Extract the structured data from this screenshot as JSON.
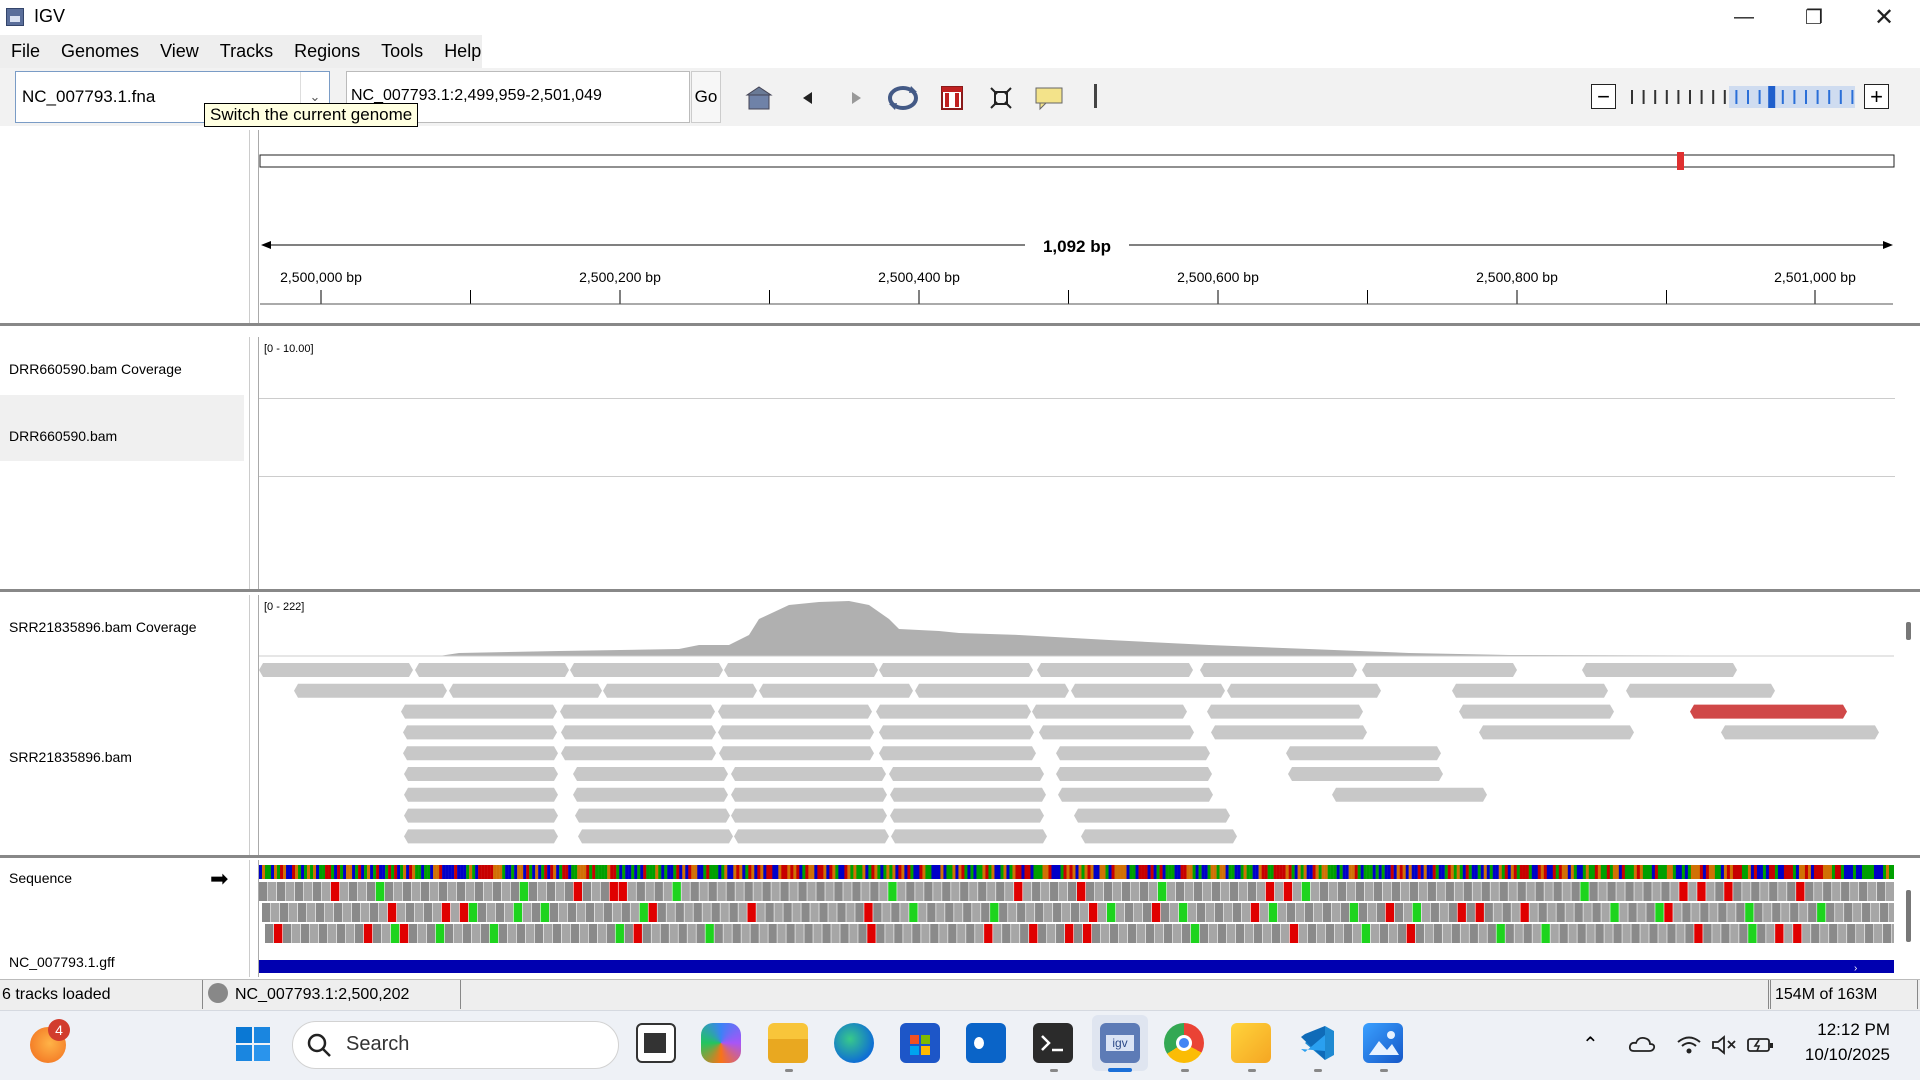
{
  "window": {
    "title": "IGV",
    "minimize_icon": "minimize-icon",
    "restore_icon": "restore-icon",
    "close_icon": "close-icon"
  },
  "menu": [
    "File",
    "Genomes",
    "View",
    "Tracks",
    "Regions",
    "Tools",
    "Help"
  ],
  "toolbar": {
    "genome_value": "NC_007793.1.fna",
    "genome_tooltip": "Switch the current genome",
    "locus_value": "NC_007793.1:2,499,959-2,501,049",
    "go_label": "Go",
    "icons": [
      "home-icon",
      "back-icon",
      "forward-icon",
      "refresh-icon",
      "roi-icon",
      "fit-icon",
      "popup-info-icon"
    ],
    "zoom_level_fraction": 0.62
  },
  "ruler": {
    "span_label": "1,092 bp",
    "ticks": [
      "2,500,000 bp",
      "2,500,200 bp",
      "2,500,400 bp",
      "2,500,600 bp",
      "2,500,800 bp",
      "2,501,000 bp"
    ]
  },
  "tracks": {
    "drr_coverage": {
      "name": "DRR660590.bam Coverage",
      "range": "[0 - 10.00]"
    },
    "drr_bam": {
      "name": "DRR660590.bam"
    },
    "srr_coverage": {
      "name": "SRR21835896.bam Coverage",
      "range": "[0 - 222]"
    },
    "srr_bam": {
      "name": "SRR21835896.bam"
    },
    "sequence": {
      "name": "Sequence",
      "strand_icon": "strand-arrow-icon"
    },
    "gff": {
      "name": "NC_007793.1.gff"
    }
  },
  "status": {
    "tracks_loaded": "6 tracks loaded",
    "position": "NC_007793.1:2,500,202",
    "memory": "154M of 163M"
  },
  "taskbar": {
    "weather_badge": "4",
    "search_label": "Search",
    "time": "12:12 PM",
    "date": "10/10/2025",
    "apps": [
      "start-icon",
      "task-view-icon",
      "copilot-icon",
      "file-explorer-icon",
      "edge-icon",
      "store-icon",
      "outlook-icon",
      "terminal-icon",
      "igv-icon",
      "chrome-icon",
      "sticky-notes-icon",
      "vscode-icon",
      "photos-icon"
    ]
  },
  "colors": {
    "read_gray": "#c8c8c8",
    "read_red": "#d04848",
    "coverage_gray": "#b0b0b0",
    "gff_blue": "#0000b0"
  }
}
